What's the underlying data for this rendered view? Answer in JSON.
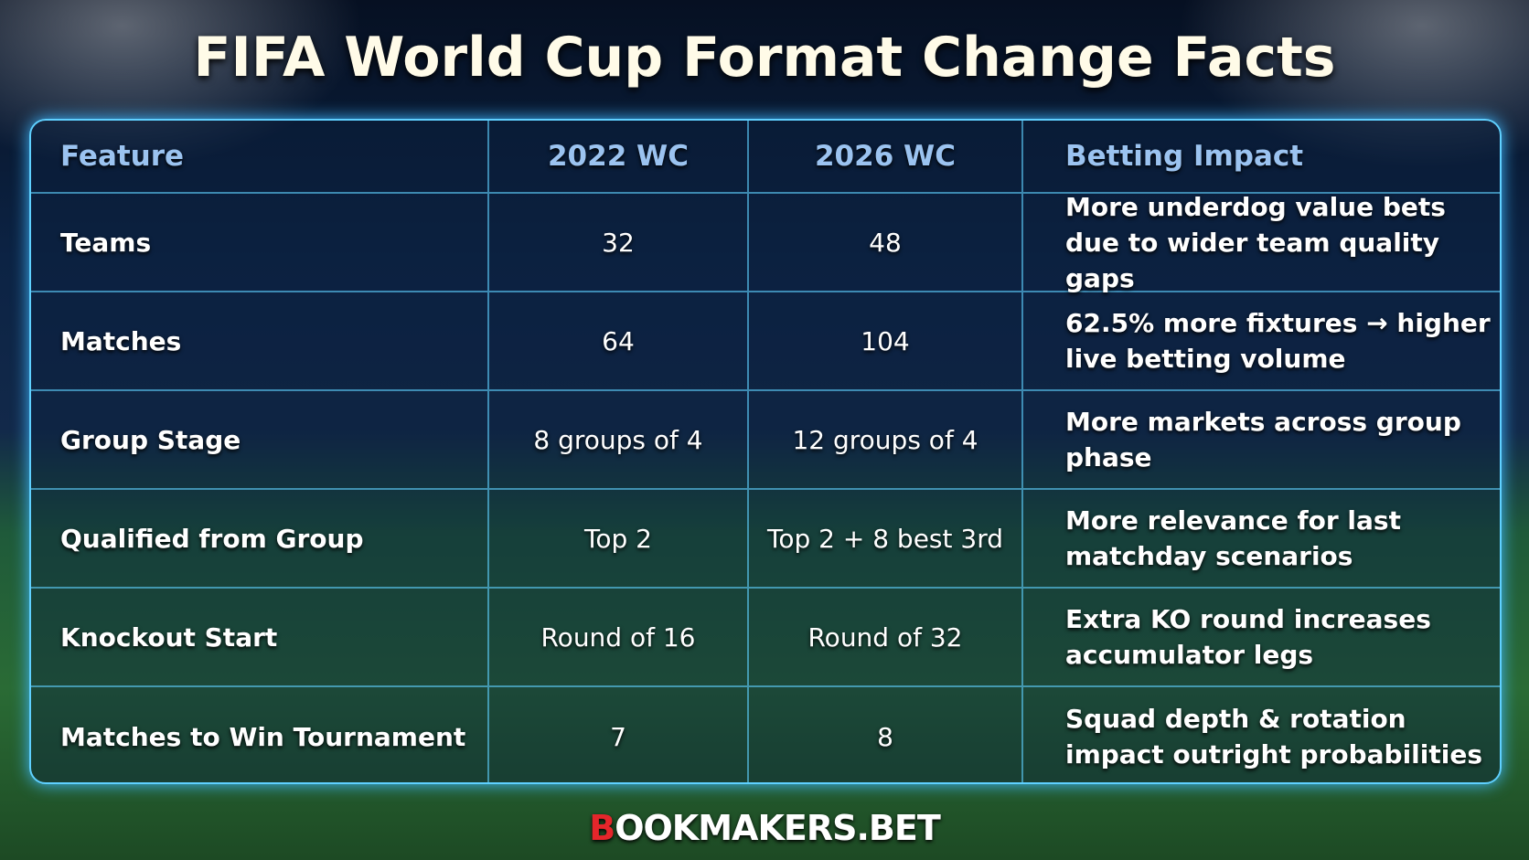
{
  "title": "FIFA World Cup Format Change Facts",
  "table": {
    "header": [
      "Feature",
      "2022 WC",
      "2026 WC",
      "Betting Impact"
    ],
    "rows": [
      [
        "Teams",
        "32",
        "48",
        "More underdog value bets due to wider team quality gaps"
      ],
      [
        "Matches",
        "64",
        "104",
        "62.5% more fixtures → higher live betting volume"
      ],
      [
        "Group Stage",
        "8 groups of 4",
        "12 groups of 4",
        "More markets across group phase"
      ],
      [
        "Qualified from Group",
        "Top 2",
        "Top 2 + 8 best 3rd",
        "More relevance for last matchday scenarios"
      ],
      [
        "Knockout Start",
        "Round of 16",
        "Round of 32",
        "Extra KO round increases accumulator legs"
      ],
      [
        "Matches to Win Tournament",
        "7",
        "8",
        "Squad depth & rotation impact outright probabilities"
      ]
    ]
  },
  "footer": {
    "logo": "BOOKMAKERS.BET"
  }
}
